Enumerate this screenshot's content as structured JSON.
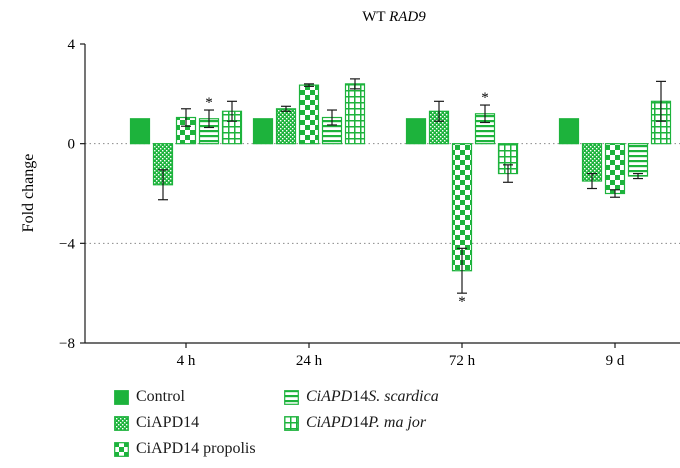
{
  "chart_data": {
    "type": "bar",
    "title": "WT RAD9",
    "title_plain": "WT ",
    "title_italic": "RAD9",
    "ylabel": "Fold change",
    "xlabel": "",
    "ylim": [
      -8,
      4
    ],
    "yticks": [
      -8,
      -4,
      0,
      4
    ],
    "reference_lines": [
      0,
      -4
    ],
    "grid": false,
    "categories": [
      "4 h",
      "24 h",
      "72 h",
      "9 d"
    ],
    "series": [
      {
        "name": "Control",
        "pattern": "solid",
        "values": [
          1.0,
          1.0,
          1.0,
          1.0
        ],
        "errors": [
          0.0,
          0.0,
          0.0,
          0.0
        ],
        "sig": [
          false,
          false,
          false,
          false
        ]
      },
      {
        "name": "CiAPD14",
        "pattern": "dots",
        "values": [
          -1.65,
          1.4,
          1.3,
          -1.5
        ],
        "errors": [
          0.6,
          0.1,
          0.4,
          0.3
        ],
        "sig": [
          false,
          false,
          false,
          false
        ]
      },
      {
        "name": "CiAPD14 propolis",
        "pattern": "checker",
        "values": [
          1.05,
          2.35,
          -5.1,
          -2.0
        ],
        "errors": [
          0.35,
          0.05,
          0.9,
          0.15
        ],
        "sig": [
          false,
          false,
          true,
          false
        ]
      },
      {
        "name": "CiAPD14 S. scardica",
        "pattern": "hstripes",
        "values": [
          1.0,
          1.05,
          1.2,
          -1.3
        ],
        "errors": [
          0.35,
          0.3,
          0.35,
          0.1
        ],
        "sig": [
          true,
          false,
          true,
          false
        ]
      },
      {
        "name": "CiAPD14 P. major",
        "pattern": "grid",
        "values": [
          1.3,
          2.4,
          -1.2,
          1.7
        ],
        "errors": [
          0.4,
          0.2,
          0.35,
          0.8
        ],
        "sig": [
          false,
          false,
          false,
          false
        ]
      }
    ],
    "significance_marker": "*",
    "legend_position": "bottom"
  },
  "colors": {
    "bar": "#1db33c",
    "axis": "#1a1a1a",
    "reference_line": "#8a8a8a"
  },
  "legend": [
    {
      "plain": "Control",
      "italic": "",
      "after": ""
    },
    {
      "plain": "CiAPD14",
      "italic": "",
      "after": ""
    },
    {
      "plain": "CiAPD14 propolis",
      "italic": "",
      "after": ""
    },
    {
      "plain": "",
      "italic": "CiAPD",
      "after": "14 ",
      "italic2": "S. scardica"
    },
    {
      "plain": "",
      "italic": "CiAPD",
      "after": "14 ",
      "italic2": "P. ma jor"
    }
  ]
}
